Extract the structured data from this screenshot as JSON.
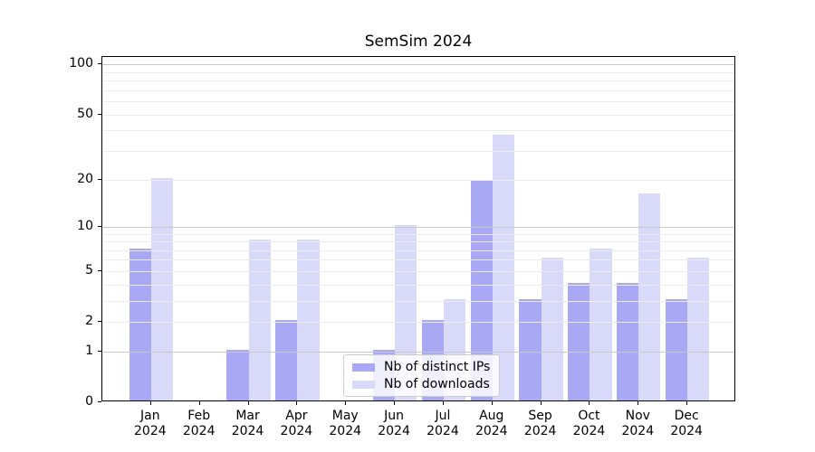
{
  "chart_data": {
    "type": "bar",
    "title": "SemSim 2024",
    "categories": [
      "Jan",
      "Feb",
      "Mar",
      "Apr",
      "May",
      "Jun",
      "Jul",
      "Aug",
      "Sep",
      "Oct",
      "Nov",
      "Dec"
    ],
    "x_tick_second_line": "2024",
    "series": [
      {
        "name": "Nb of distinct IPs",
        "color": "#a8a8f5",
        "values": [
          7,
          0,
          1,
          2,
          0,
          1,
          2,
          19,
          3,
          4,
          4,
          3
        ]
      },
      {
        "name": "Nb of downloads",
        "color": "#d9d9f9",
        "values": [
          20,
          0,
          8,
          8,
          0,
          10,
          3,
          37,
          6,
          7,
          16,
          6
        ]
      }
    ],
    "xlabel": "",
    "ylabel": "",
    "yscale": "log1p",
    "ylim": [
      0,
      111
    ],
    "y_ticks": [
      0,
      1,
      2,
      5,
      10,
      20,
      50,
      100
    ],
    "grid": {
      "on": true,
      "major_values": [
        1,
        10,
        100
      ],
      "minor_values": [
        2,
        3,
        4,
        5,
        6,
        7,
        8,
        9,
        20,
        30,
        40,
        50,
        60,
        70,
        80,
        90
      ],
      "major_color": "#c8c8c8",
      "minor_color": "#ececec"
    },
    "legend_position": "lower-center-inside"
  }
}
